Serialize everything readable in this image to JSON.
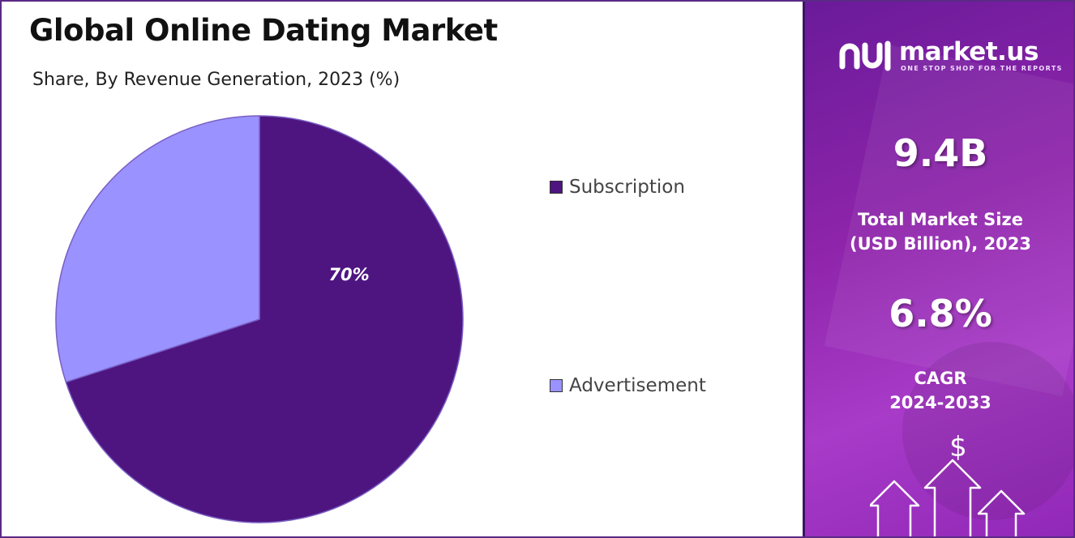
{
  "header": {
    "title": "Global Online Dating Market",
    "subtitle": "Share, By Revenue Generation, 2023 (%)"
  },
  "chart_data": {
    "type": "pie",
    "title": "Global Online Dating Market",
    "subtitle": "Share, By Revenue Generation, 2023 (%)",
    "slices": [
      {
        "name": "Subscription",
        "value": 70,
        "label": "70%",
        "color": "#4e1581"
      },
      {
        "name": "Advertisement",
        "value": 30,
        "label": "",
        "color": "#9a92ff"
      }
    ],
    "start_angle_deg": 0,
    "direction": "clockwise",
    "legend_position": "right"
  },
  "legend": [
    {
      "label": "Subscription",
      "color": "#4e1581"
    },
    {
      "label": "Advertisement",
      "color": "#9a92ff"
    }
  ],
  "side_panel": {
    "logo_name": "market.us",
    "logo_tagline": "ONE STOP SHOP FOR THE REPORTS",
    "market_size_value": "9.4B",
    "market_size_label_line1": "Total Market Size",
    "market_size_label_line2": "(USD Billion), 2023",
    "cagr_value": "6.8%",
    "cagr_label_line1": "CAGR",
    "cagr_label_line2": "2024-2033",
    "dollar_symbol": "$",
    "background_color": "#8e24aa"
  }
}
